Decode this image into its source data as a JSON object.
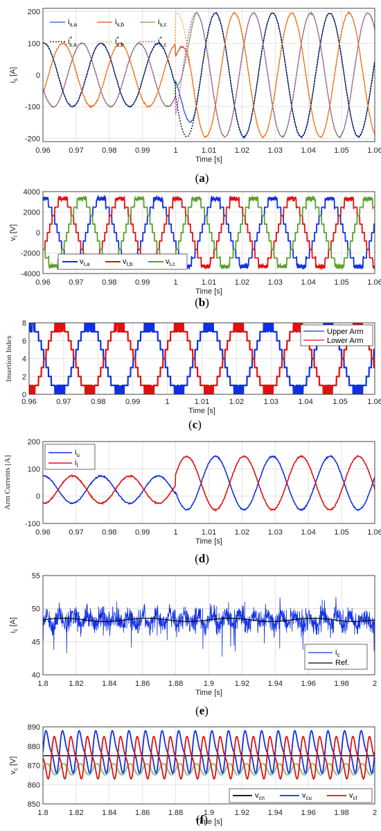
{
  "chart_data": [
    {
      "type": "line",
      "caption": "(a)",
      "xlabel": "Time [s]",
      "ylabel": "i_s [A]",
      "xlim": [
        0.96,
        1.06
      ],
      "ylim": [
        -210,
        210
      ],
      "xticks": [
        "0.96",
        "0.97",
        "0.98",
        "0.99",
        "1",
        "1.01",
        "1.02",
        "1.03",
        "1.04",
        "1.05",
        "1.06"
      ],
      "yticks": [
        "-200",
        "-100",
        "0",
        "100",
        "200"
      ],
      "grid": true,
      "legend_position": "top-left",
      "step": {
        "time": 1.0,
        "amplitude_before": 100,
        "amplitude_after": 195,
        "frequency_hz": 58
      },
      "series": [
        {
          "name": "i_s,a",
          "main": "i",
          "sub": "s,a",
          "star": false,
          "color": "#1f4fd8",
          "dash": "none",
          "phase_deg": 200
        },
        {
          "name": "i_s,b",
          "main": "i",
          "sub": "s,b",
          "star": false,
          "color": "#e8481c",
          "dash": "none",
          "phase_deg": 80
        },
        {
          "name": "i_s,c",
          "main": "i",
          "sub": "s,c",
          "star": false,
          "color": "#6aa84f",
          "dash": "none",
          "phase_deg": 320
        },
        {
          "name": "i*_s,a",
          "main": "i",
          "sub": "s,a",
          "star": true,
          "color": "#000000",
          "dash": "2,2",
          "phase_deg": 200
        },
        {
          "name": "i*_s,b",
          "main": "i",
          "sub": "s,b",
          "star": true,
          "color": "#f5a623",
          "dash": "2,2",
          "phase_deg": 80
        },
        {
          "name": "i*_s,c",
          "main": "i",
          "sub": "s,c",
          "star": true,
          "color": "#cc33cc",
          "dash": "2,2",
          "phase_deg": 320
        }
      ]
    },
    {
      "type": "line",
      "caption": "(b)",
      "xlabel": "Time [s]",
      "ylabel": "v_t [V]",
      "xlim": [
        0.96,
        1.06
      ],
      "ylim": [
        -4000,
        4000
      ],
      "xticks": [
        "0.96",
        "0.97",
        "0.98",
        "0.99",
        "1",
        "1.01",
        "1.02",
        "1.03",
        "1.04",
        "1.05",
        "1.06"
      ],
      "yticks": [
        "-4000",
        "-2000",
        "0",
        "2000",
        "4000"
      ],
      "grid": true,
      "legend_position": "bottom-left",
      "amplitude": 3300,
      "levels": 8,
      "frequency_hz": 58,
      "series": [
        {
          "name": "v_t,a",
          "main": "v",
          "sub": "t,a",
          "color": "#1030e0",
          "phase_deg": 200
        },
        {
          "name": "v_t,b",
          "main": "v",
          "sub": "t,b",
          "color": "#e01010",
          "phase_deg": 80
        },
        {
          "name": "v_t,c",
          "main": "v",
          "sub": "t,c",
          "color": "#5aa02c",
          "phase_deg": 320
        }
      ]
    },
    {
      "type": "line",
      "caption": "(c)",
      "xlabel": "Time [s]",
      "ylabel": "Insertion Index",
      "xlim": [
        0.96,
        1.06
      ],
      "ylim": [
        0,
        8
      ],
      "xticks": [
        "0.96",
        "0.97",
        "0.98",
        "0.99",
        "1",
        "1.01",
        "1.02",
        "1.03",
        "1.04",
        "1.05",
        "1.06"
      ],
      "yticks": [
        "0",
        "2",
        "4",
        "6",
        "8"
      ],
      "grid": true,
      "legend_position": "top-right",
      "frequency_hz": 58,
      "series": [
        {
          "name": "Upper Arm",
          "color": "#1030e0",
          "phase_deg": 200
        },
        {
          "name": "Lower Arm",
          "color": "#e01010",
          "phase_deg": 20
        }
      ]
    },
    {
      "type": "line",
      "caption": "(d)",
      "xlabel": "Time [s]",
      "ylabel": "Arm Currents [A]",
      "xlim": [
        0.96,
        1.06
      ],
      "ylim": [
        -100,
        200
      ],
      "xticks": [
        "0.96",
        "0.97",
        "0.98",
        "0.99",
        "1",
        "1.01",
        "1.02",
        "1.03",
        "1.04",
        "1.05",
        "1.06"
      ],
      "yticks": [
        "-100",
        "0",
        "100",
        "200"
      ],
      "grid": true,
      "legend_position": "top-left",
      "frequency_hz": 58,
      "dc_offset": 48,
      "ac_amplitude_before": 50,
      "ac_amplitude_after": 98,
      "series": [
        {
          "name": "i_u",
          "main": "i",
          "sub": "u",
          "color": "#1030e0",
          "sign": 1
        },
        {
          "name": "i_l",
          "main": "i",
          "sub": "l",
          "color": "#e01010",
          "sign": -1
        }
      ]
    },
    {
      "type": "line",
      "caption": "(e)",
      "xlabel": "Time [s]",
      "ylabel": "i_c [A]",
      "xlim": [
        1.8,
        2.0
      ],
      "ylim": [
        40,
        55
      ],
      "xticks": [
        "1.8",
        "1.82",
        "1.84",
        "1.86",
        "1.88",
        "1.9",
        "1.92",
        "1.94",
        "1.96",
        "1.98",
        "2"
      ],
      "yticks": [
        "40",
        "45",
        "50",
        "55"
      ],
      "grid": true,
      "legend_position": "bottom-right",
      "mean": 48.3,
      "series": [
        {
          "name": "i_c",
          "main": "i",
          "sub": "c",
          "color": "#1030e0"
        },
        {
          "name": "Ref.",
          "main": "Ref.",
          "sub": "",
          "color": "#000000"
        }
      ]
    },
    {
      "type": "line",
      "caption": "(f)",
      "xlabel": "Time [s]",
      "ylabel": "v_c [V]",
      "xlim": [
        1.8,
        2.0
      ],
      "ylim": [
        850,
        890
      ],
      "xticks": [
        "1.8",
        "1.82",
        "1.84",
        "1.86",
        "1.88",
        "1.9",
        "1.92",
        "1.94",
        "1.96",
        "1.98",
        "2"
      ],
      "yticks": [
        "850",
        "860",
        "870",
        "880",
        "890"
      ],
      "grid": true,
      "legend_position": "bottom-right",
      "frequency_hz": 100,
      "series": [
        {
          "name": "v_cn",
          "main": "v",
          "sub": "cn",
          "color": "#000000",
          "level": 875
        },
        {
          "name": "v_cu",
          "main": "v",
          "sub": "cu",
          "color": "#1030e0",
          "center": 875,
          "amp": 12
        },
        {
          "name": "v_cl",
          "main": "v",
          "sub": "cl",
          "color": "#e01010",
          "center": 875,
          "amp": 12
        }
      ]
    }
  ]
}
